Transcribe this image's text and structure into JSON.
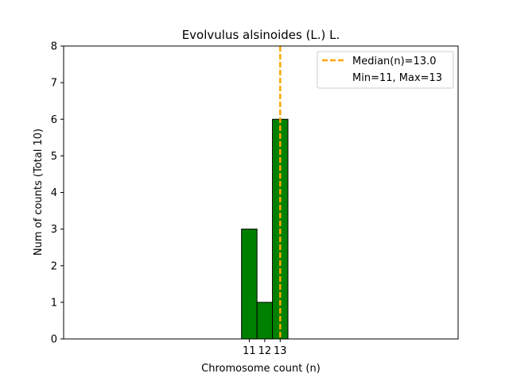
{
  "chart_data": {
    "type": "bar",
    "title": "Evolvulus alsinoides (L.) L.",
    "xlabel": "Chromosome count (n)",
    "ylabel": "Num of counts     (Total 10)",
    "categories": [
      11,
      12,
      13
    ],
    "values": [
      3,
      1,
      6
    ],
    "xlim": [
      -1.0,
      24.5
    ],
    "ylim": [
      0,
      8
    ],
    "yticks": [
      0,
      1,
      2,
      3,
      4,
      5,
      6,
      7,
      8
    ],
    "xticks": [
      11,
      12,
      13
    ],
    "bar_color": "#008000",
    "bar_edge_color": "#000000",
    "grid": false,
    "median": 13.0,
    "median_color": "#FFA500",
    "legend": {
      "placement": "top-right",
      "entries": [
        "Median(n)=13.0",
        "Min=11, Max=13"
      ]
    }
  }
}
